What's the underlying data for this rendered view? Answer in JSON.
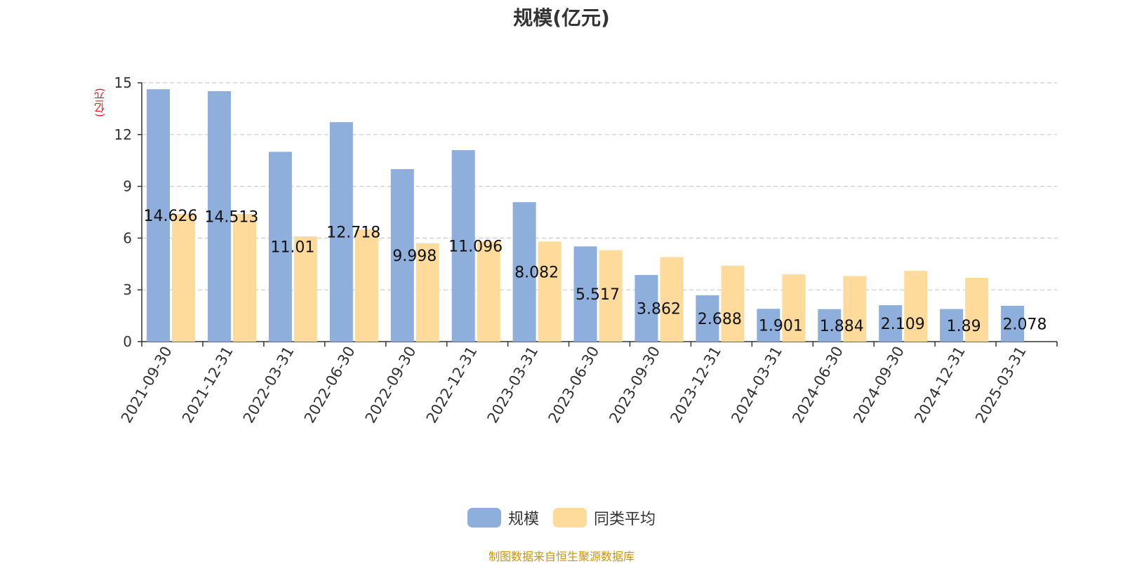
{
  "title": "规模(亿元)",
  "source": "制图数据来自恒生聚源数据库",
  "chart_data": {
    "type": "bar",
    "title": "规模(亿元)",
    "ylabel": "(亿元)",
    "xlabel": "",
    "ylim": [
      0,
      15
    ],
    "yticks": [
      0,
      3,
      6,
      9,
      12,
      15
    ],
    "grid": true,
    "legend_position": "bottom",
    "categories": [
      "2021-09-30",
      "2021-12-31",
      "2022-03-31",
      "2022-06-30",
      "2022-09-30",
      "2022-12-31",
      "2023-03-31",
      "2023-06-30",
      "2023-09-30",
      "2023-12-31",
      "2024-03-31",
      "2024-06-30",
      "2024-09-30",
      "2024-12-31",
      "2025-03-31"
    ],
    "series": [
      {
        "name": "规模",
        "color": "#8eaedb",
        "values": [
          14.626,
          14.513,
          11.0,
          12.718,
          9.998,
          11.096,
          8.082,
          5.517,
          3.862,
          2.688,
          1.901,
          1.884,
          2.109,
          1.89,
          2.078
        ],
        "labels": [
          "14.626",
          "14.513",
          "11.01",
          "12.718",
          "9.998",
          "11.096",
          "8.082",
          "5.517",
          "3.862",
          "2.688",
          "1.901",
          "1.884",
          "2.109",
          "1.89",
          "2.078"
        ]
      },
      {
        "name": "同类平均",
        "color": "#fedb9b",
        "values": [
          7.4,
          7.4,
          6.1,
          6.5,
          5.7,
          5.8,
          5.8,
          5.3,
          4.9,
          4.4,
          3.9,
          3.8,
          4.1,
          3.7,
          null
        ]
      }
    ]
  }
}
